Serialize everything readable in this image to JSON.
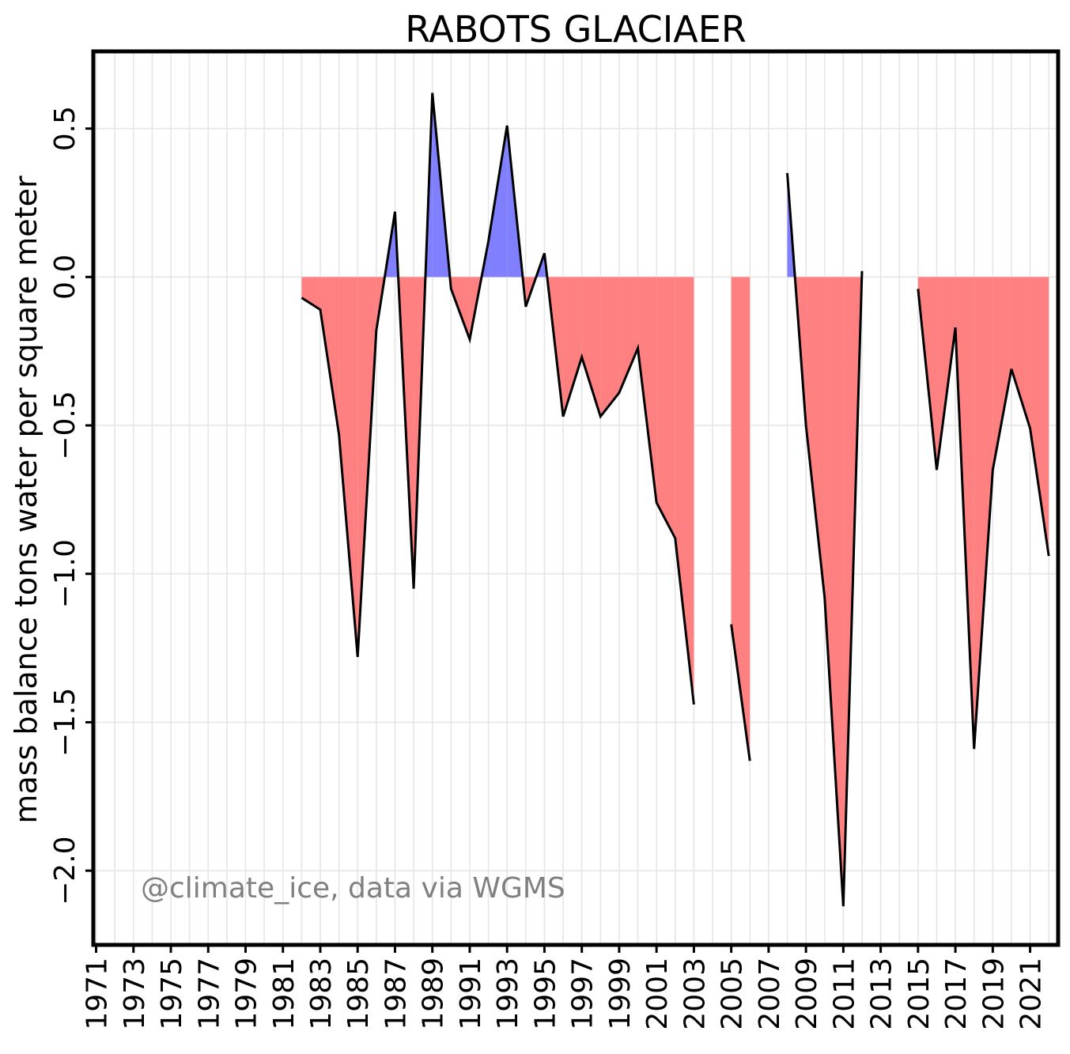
{
  "chart_data": {
    "type": "area",
    "title": "RABOTS GLACIAER",
    "xlabel": "",
    "ylabel": "mass balance tons water per square meter",
    "annotation": "@climate_ice, data via WGMS",
    "xlim": [
      1970.85,
      2022.5
    ],
    "ylim": [
      -2.25,
      0.76
    ],
    "y_ticks": [
      0.5,
      0.0,
      -0.5,
      -1.0,
      -1.5,
      -2.0
    ],
    "y_tick_labels": [
      "0.5",
      "0.0",
      "−0.5",
      "−1.0",
      "−1.5",
      "−2.0"
    ],
    "x_ticks": [
      1971,
      1973,
      1975,
      1977,
      1979,
      1981,
      1983,
      1985,
      1987,
      1989,
      1991,
      1993,
      1995,
      1997,
      1999,
      2001,
      2003,
      2005,
      2007,
      2009,
      2011,
      2013,
      2015,
      2017,
      2019,
      2021
    ],
    "grid": true,
    "colors": {
      "line": "#000000",
      "positive_fill": "#8080ff",
      "negative_fill": "#ff8080",
      "grid": "#e6e6e6",
      "annotation": "#808080"
    },
    "segments": [
      {
        "x": [
          1982,
          1983,
          1984,
          1985,
          1986,
          1987,
          1988,
          1989,
          1990,
          1991,
          1992,
          1993,
          1994,
          1995,
          1996,
          1997,
          1998,
          1999,
          2000,
          2001,
          2002,
          2003
        ],
        "y": [
          -0.07,
          -0.11,
          -0.53,
          -1.28,
          -0.18,
          0.22,
          -1.05,
          0.62,
          -0.04,
          -0.21,
          0.12,
          0.51,
          -0.1,
          0.08,
          -0.47,
          -0.27,
          -0.47,
          -0.39,
          -0.24,
          -0.76,
          -0.88,
          -1.44
        ]
      },
      {
        "x": [
          2005,
          2006
        ],
        "y": [
          -1.17,
          -1.63
        ]
      },
      {
        "x": [
          2008,
          2009,
          2010,
          2011,
          2012
        ],
        "y": [
          0.35,
          -0.5,
          -1.08,
          -2.12,
          0.02
        ]
      },
      {
        "x": [
          2015,
          2016,
          2017,
          2018,
          2019,
          2020,
          2021,
          2022
        ],
        "y": [
          -0.04,
          -0.65,
          -0.17,
          -1.59,
          -0.65,
          -0.31,
          -0.51,
          -0.94
        ]
      }
    ]
  }
}
